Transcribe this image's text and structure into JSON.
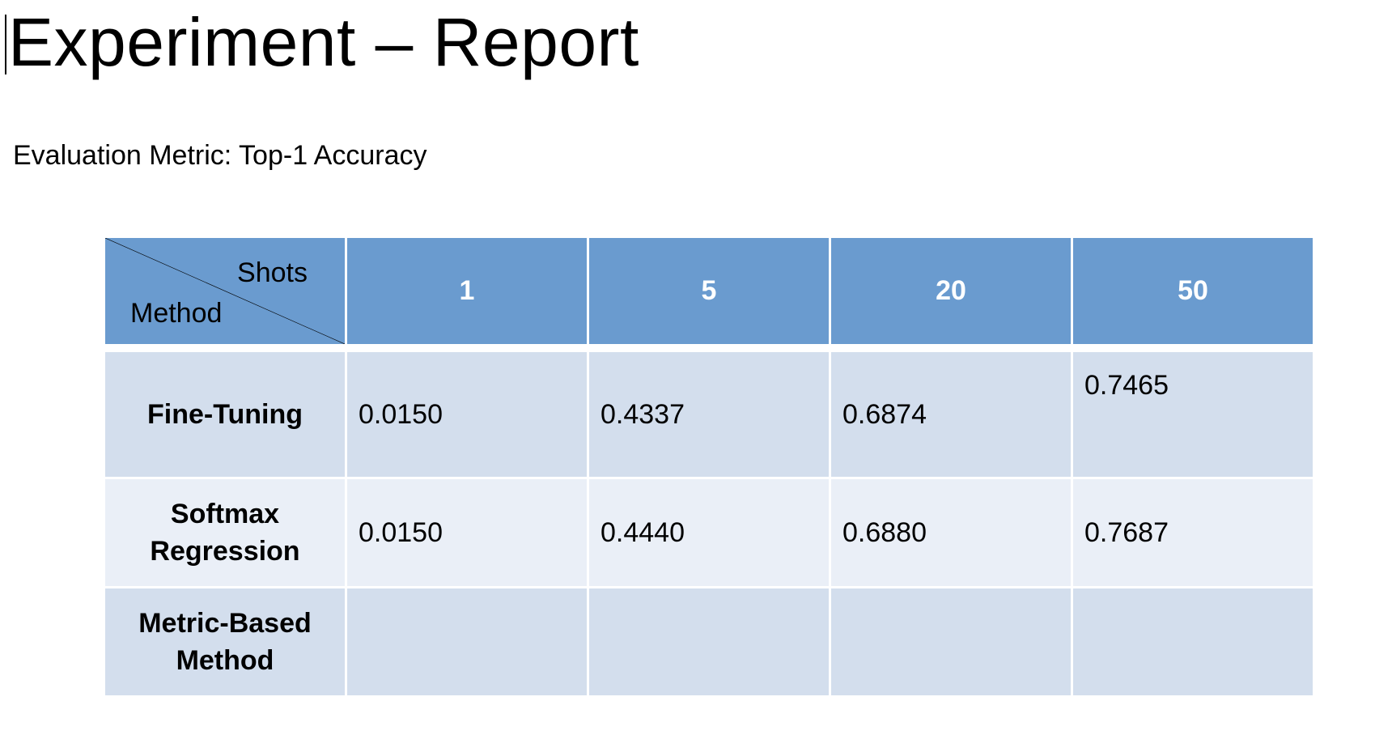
{
  "title": "Experiment – Report",
  "subtitle": "Evaluation Metric: Top-1 Accuracy",
  "colors": {
    "header": "#6a9bcf",
    "row_dark": "#d3deed",
    "row_light": "#eaeff7"
  },
  "table": {
    "corner": {
      "top_right": "Shots",
      "bottom_left": "Method"
    },
    "columns": [
      "1",
      "5",
      "20",
      "50"
    ],
    "rows": [
      {
        "method_lines": [
          "Fine-Tuning"
        ],
        "values": [
          "0.0150",
          "0.4337",
          "0.6874",
          "0.7465"
        ]
      },
      {
        "method_lines": [
          "Softmax",
          "Regression"
        ],
        "values": [
          "0.0150",
          "0.4440",
          "0.6880",
          "0.7687"
        ]
      },
      {
        "method_lines": [
          "Metric-Based",
          "Method"
        ],
        "values": [
          "",
          "",
          "",
          ""
        ]
      }
    ]
  }
}
